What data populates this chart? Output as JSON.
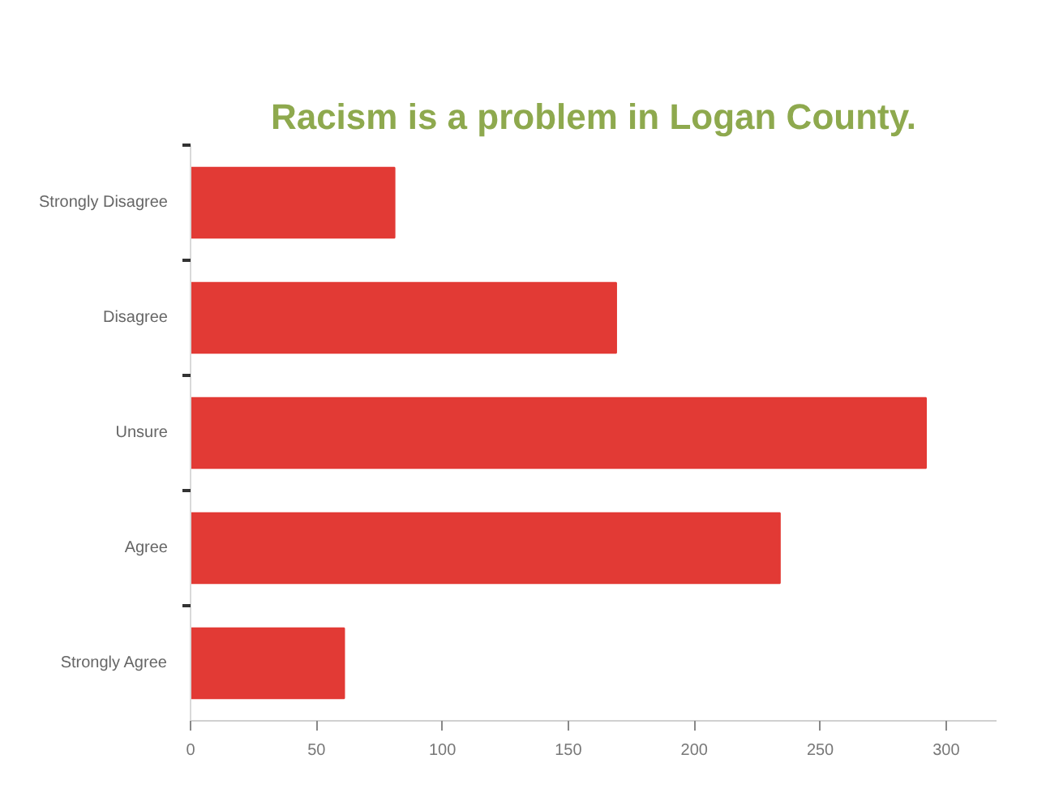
{
  "chart_data": {
    "type": "bar",
    "orientation": "horizontal",
    "title": "Racism is a problem in Logan County.",
    "categories": [
      "Strongly Disagree",
      "Disagree",
      "Unsure",
      "Agree",
      "Strongly Agree"
    ],
    "values": [
      81,
      169,
      292,
      234,
      61
    ],
    "color": "#e23a35",
    "xlim": [
      0,
      320
    ],
    "xticks": [
      0,
      50,
      100,
      150,
      200,
      250,
      300
    ]
  }
}
